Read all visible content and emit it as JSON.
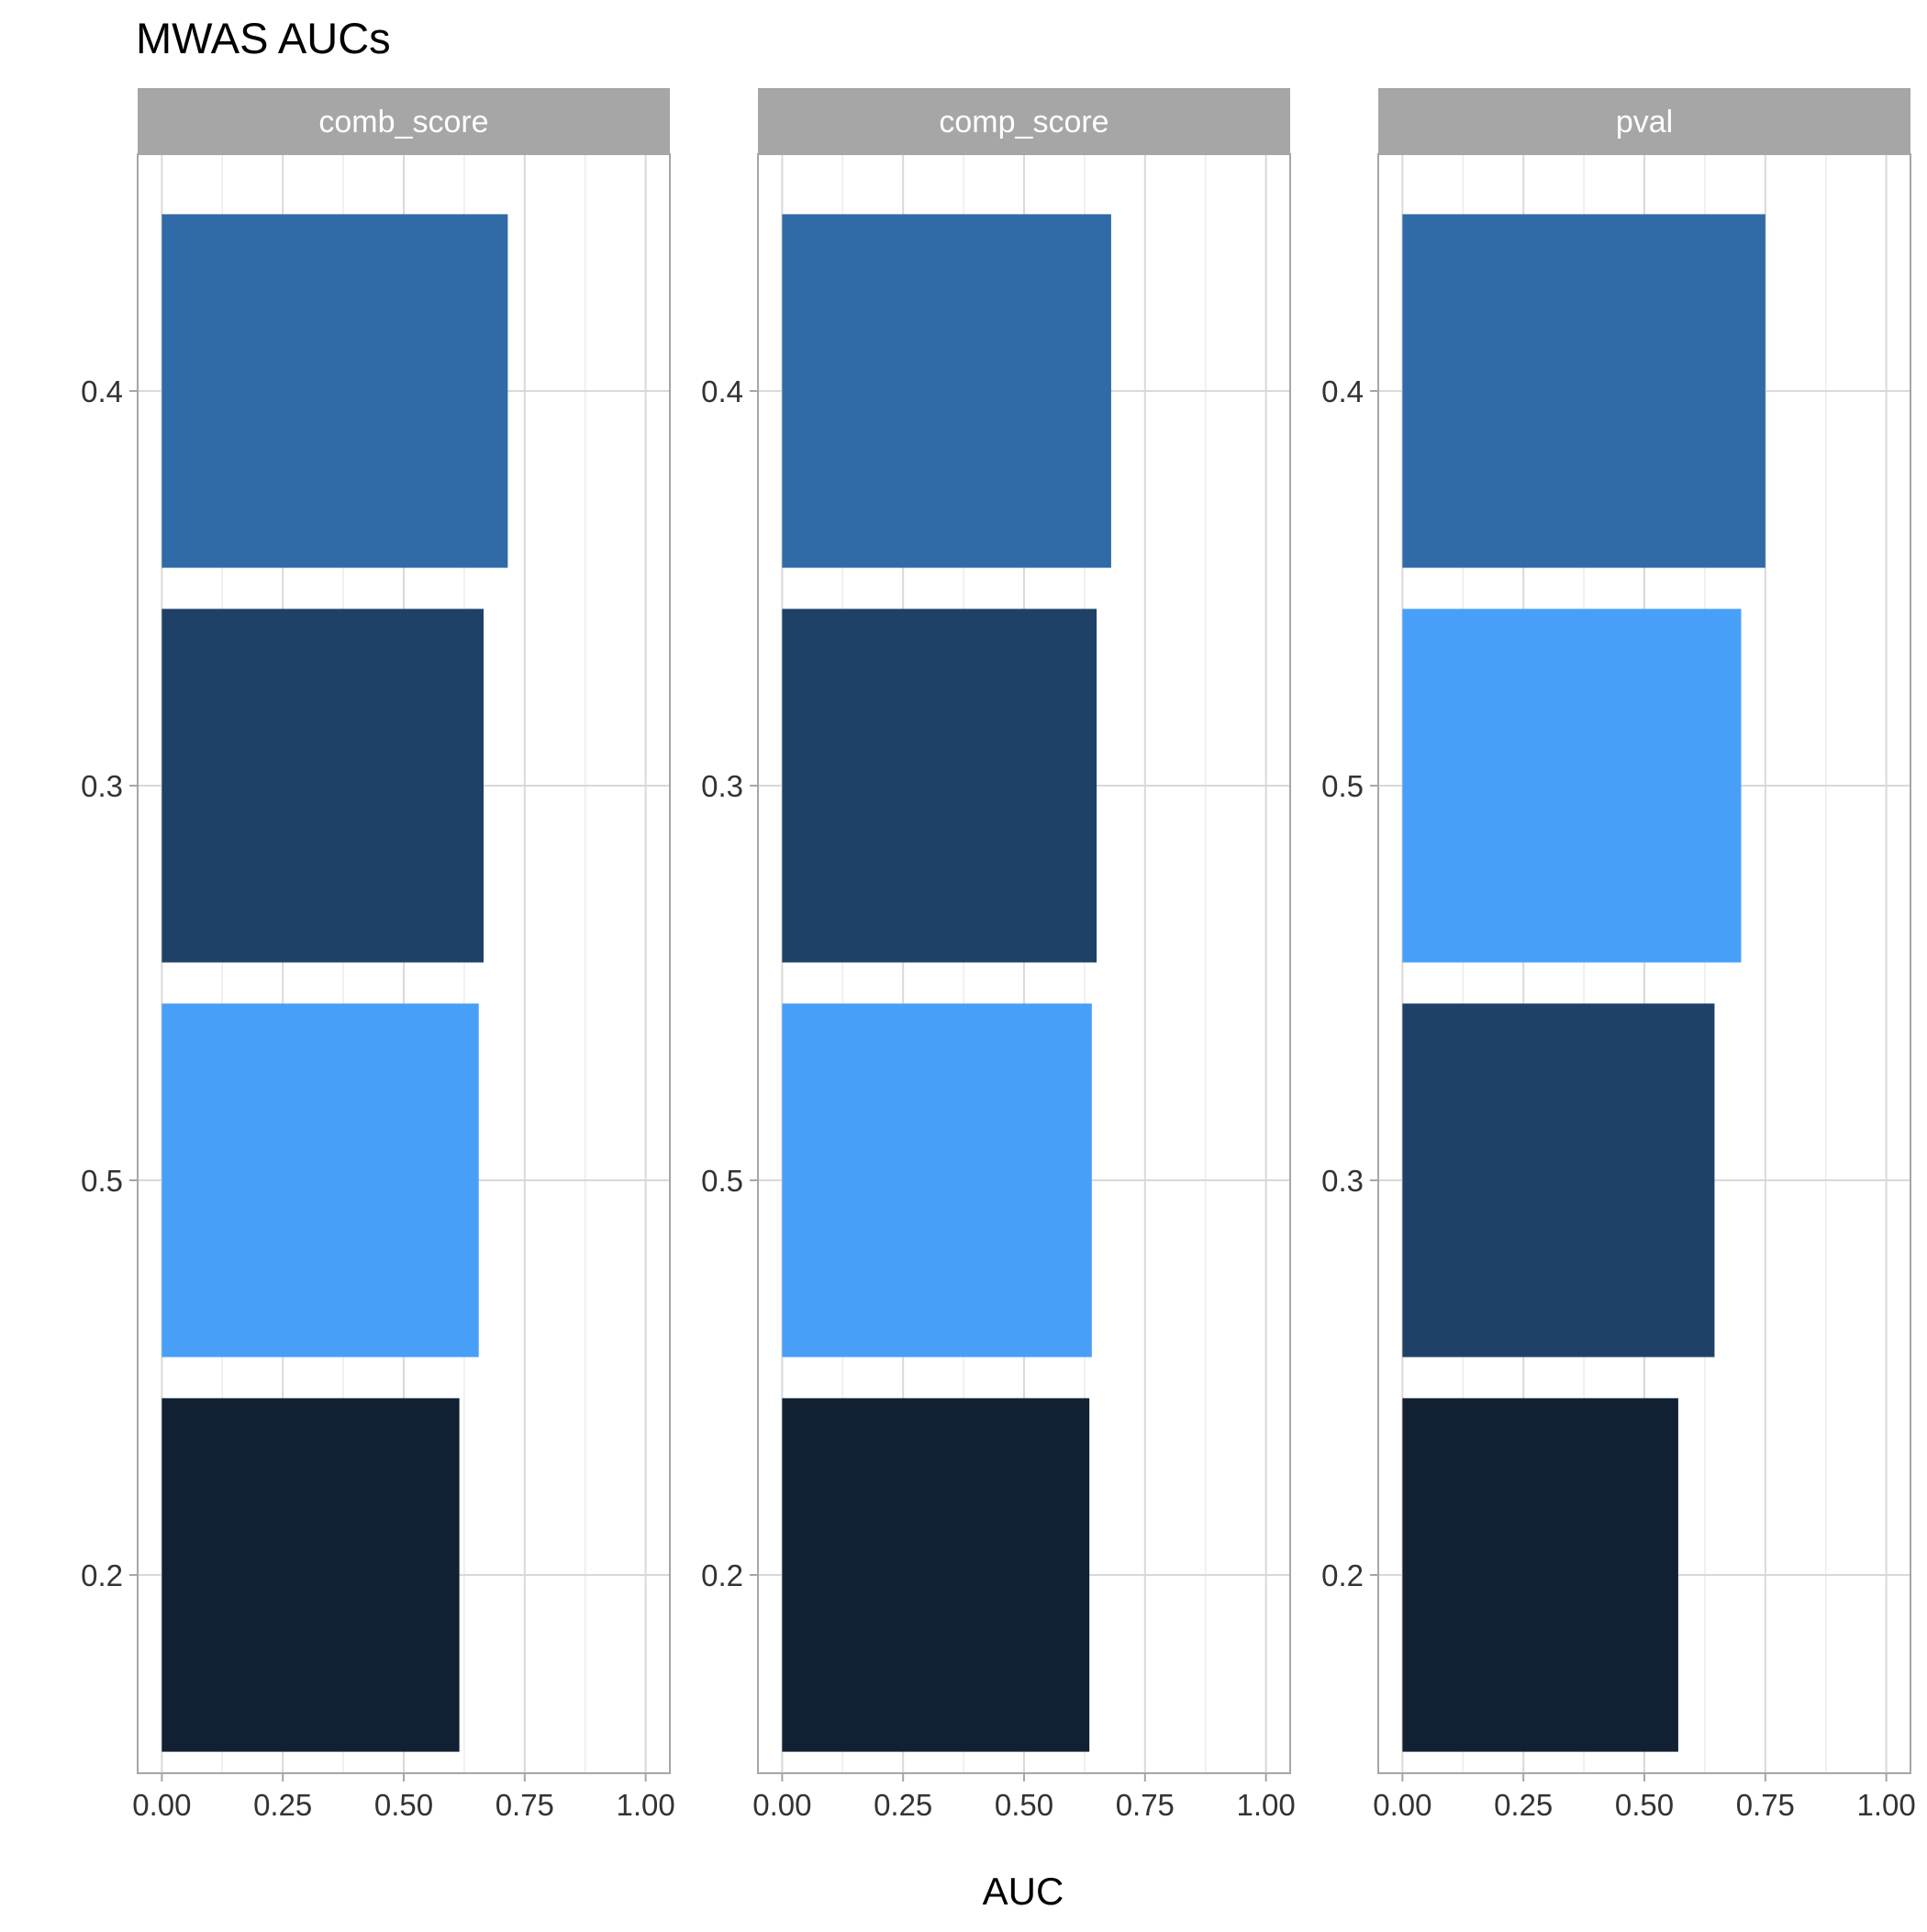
{
  "chart_data": {
    "type": "bar",
    "orientation": "horizontal",
    "title": "MWAS AUCs",
    "xlabel": "AUC",
    "ylabel": "",
    "xlim": [
      0,
      1.05
    ],
    "x_ticks": [
      "0.00",
      "0.25",
      "0.50",
      "0.75",
      "1.00"
    ],
    "x_tick_values": [
      0,
      0.25,
      0.5,
      0.75,
      1.0
    ],
    "grid": true,
    "legend": "none",
    "colors": {
      "0.2": "#112133",
      "0.3": "#1f4167",
      "0.4": "#306aa7",
      "0.5": "#489ff7"
    },
    "facets": [
      {
        "label": "comb_score",
        "categories": [
          "0.4",
          "0.3",
          "0.5",
          "0.2"
        ],
        "values": [
          0.715,
          0.665,
          0.655,
          0.615
        ]
      },
      {
        "label": "comp_score",
        "categories": [
          "0.4",
          "0.3",
          "0.5",
          "0.2"
        ],
        "values": [
          0.68,
          0.65,
          0.64,
          0.635
        ]
      },
      {
        "label": "pval",
        "categories": [
          "0.4",
          "0.5",
          "0.3",
          "0.2"
        ],
        "values": [
          0.75,
          0.7,
          0.645,
          0.57
        ]
      }
    ]
  }
}
